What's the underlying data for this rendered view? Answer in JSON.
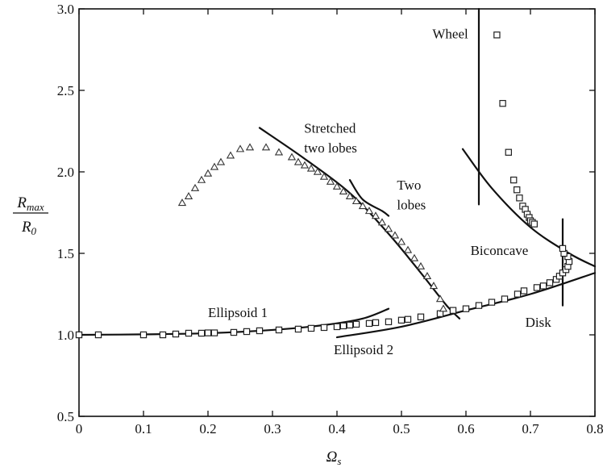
{
  "chart_data": {
    "type": "scatter",
    "title": "",
    "xlabel": {
      "main": "Ω",
      "sub": "s"
    },
    "ylabel": {
      "numerator_main": "R",
      "numerator_sub": "max",
      "denominator_main": "R",
      "denominator_sub": "0"
    },
    "xlim": [
      0,
      0.8
    ],
    "ylim": [
      0.5,
      3.0
    ],
    "xticks": [
      0,
      0.1,
      0.2,
      0.3,
      0.4,
      0.5,
      0.6,
      0.7,
      0.8
    ],
    "xtick_labels": [
      "0",
      "0.1",
      "0.2",
      "0.3",
      "0.4",
      "0.5",
      "0.6",
      "0.7",
      "0.8"
    ],
    "yticks": [
      0.5,
      1.0,
      1.5,
      2.0,
      2.5,
      3.0
    ],
    "ytick_labels": [
      "0.5",
      "1.0",
      "1.5",
      "2.0",
      "2.5",
      "3.0"
    ],
    "grid": false,
    "series": [
      {
        "marker": "square",
        "points": [
          [
            0.0,
            1.0
          ],
          [
            0.03,
            1.0
          ],
          [
            0.1,
            1.0
          ],
          [
            0.13,
            1.0
          ],
          [
            0.15,
            1.005
          ],
          [
            0.17,
            1.01
          ],
          [
            0.19,
            1.01
          ],
          [
            0.2,
            1.012
          ],
          [
            0.21,
            1.012
          ],
          [
            0.24,
            1.015
          ],
          [
            0.26,
            1.02
          ],
          [
            0.28,
            1.025
          ],
          [
            0.31,
            1.03
          ],
          [
            0.34,
            1.035
          ],
          [
            0.36,
            1.04
          ],
          [
            0.38,
            1.045
          ],
          [
            0.4,
            1.05
          ],
          [
            0.41,
            1.055
          ],
          [
            0.42,
            1.06
          ],
          [
            0.43,
            1.065
          ],
          [
            0.45,
            1.07
          ],
          [
            0.46,
            1.075
          ],
          [
            0.48,
            1.08
          ],
          [
            0.5,
            1.09
          ],
          [
            0.51,
            1.095
          ],
          [
            0.53,
            1.11
          ],
          [
            0.56,
            1.13
          ],
          [
            0.58,
            1.15
          ],
          [
            0.6,
            1.16
          ],
          [
            0.62,
            1.18
          ],
          [
            0.64,
            1.2
          ],
          [
            0.66,
            1.22
          ],
          [
            0.68,
            1.25
          ],
          [
            0.69,
            1.27
          ],
          [
            0.71,
            1.29
          ],
          [
            0.72,
            1.3
          ],
          [
            0.73,
            1.32
          ],
          [
            0.74,
            1.34
          ],
          [
            0.745,
            1.36
          ],
          [
            0.75,
            1.38
          ],
          [
            0.755,
            1.4
          ],
          [
            0.758,
            1.42
          ],
          [
            0.76,
            1.45
          ],
          [
            0.758,
            1.48
          ],
          [
            0.752,
            1.5
          ],
          [
            0.75,
            1.53
          ],
          [
            0.648,
            2.84
          ],
          [
            0.657,
            2.42
          ],
          [
            0.666,
            2.12
          ],
          [
            0.674,
            1.95
          ],
          [
            0.679,
            1.89
          ],
          [
            0.683,
            1.84
          ],
          [
            0.688,
            1.79
          ],
          [
            0.692,
            1.77
          ],
          [
            0.695,
            1.74
          ],
          [
            0.698,
            1.72
          ],
          [
            0.7,
            1.7
          ],
          [
            0.703,
            1.69
          ],
          [
            0.706,
            1.68
          ]
        ]
      },
      {
        "marker": "triangle",
        "points": [
          [
            0.16,
            1.81
          ],
          [
            0.17,
            1.85
          ],
          [
            0.18,
            1.9
          ],
          [
            0.19,
            1.95
          ],
          [
            0.2,
            1.99
          ],
          [
            0.21,
            2.03
          ],
          [
            0.22,
            2.06
          ],
          [
            0.235,
            2.1
          ],
          [
            0.25,
            2.14
          ],
          [
            0.265,
            2.15
          ],
          [
            0.29,
            2.15
          ],
          [
            0.31,
            2.12
          ],
          [
            0.33,
            2.09
          ],
          [
            0.34,
            2.06
          ],
          [
            0.35,
            2.04
          ],
          [
            0.36,
            2.02
          ],
          [
            0.37,
            2.0
          ],
          [
            0.38,
            1.97
          ],
          [
            0.39,
            1.94
          ],
          [
            0.4,
            1.91
          ],
          [
            0.41,
            1.88
          ],
          [
            0.42,
            1.85
          ],
          [
            0.43,
            1.82
          ],
          [
            0.44,
            1.79
          ],
          [
            0.45,
            1.76
          ],
          [
            0.46,
            1.73
          ],
          [
            0.47,
            1.69
          ],
          [
            0.48,
            1.65
          ],
          [
            0.49,
            1.61
          ],
          [
            0.5,
            1.57
          ],
          [
            0.51,
            1.52
          ],
          [
            0.52,
            1.47
          ],
          [
            0.53,
            1.42
          ],
          [
            0.54,
            1.36
          ],
          [
            0.55,
            1.3
          ],
          [
            0.56,
            1.22
          ],
          [
            0.565,
            1.16
          ]
        ]
      }
    ],
    "fit_lines": [
      {
        "points": [
          [
            0.0,
            1.0
          ],
          [
            0.1,
            1.003
          ],
          [
            0.2,
            1.01
          ],
          [
            0.3,
            1.03
          ],
          [
            0.38,
            1.06
          ],
          [
            0.44,
            1.1
          ],
          [
            0.48,
            1.16
          ]
        ]
      },
      {
        "points": [
          [
            0.4,
            0.985
          ],
          [
            0.5,
            1.05
          ],
          [
            0.6,
            1.15
          ],
          [
            0.7,
            1.25
          ],
          [
            0.8,
            1.38
          ]
        ]
      },
      {
        "points": [
          [
            0.28,
            2.27
          ],
          [
            0.35,
            2.08
          ],
          [
            0.42,
            1.87
          ],
          [
            0.48,
            1.62
          ],
          [
            0.53,
            1.38
          ],
          [
            0.57,
            1.18
          ],
          [
            0.59,
            1.1
          ]
        ]
      },
      {
        "points": [
          [
            0.42,
            1.95
          ],
          [
            0.44,
            1.83
          ],
          [
            0.47,
            1.76
          ],
          [
            0.48,
            1.73
          ]
        ]
      },
      {
        "points": [
          [
            0.595,
            2.14
          ],
          [
            0.64,
            1.9
          ],
          [
            0.7,
            1.66
          ],
          [
            0.76,
            1.5
          ],
          [
            0.8,
            1.42
          ]
        ]
      },
      {
        "points": [
          [
            0.62,
            3.0
          ],
          [
            0.62,
            1.8
          ]
        ]
      },
      {
        "points": [
          [
            0.75,
            1.71
          ],
          [
            0.75,
            1.18
          ]
        ]
      }
    ],
    "region_labels": [
      {
        "text": "Wheel",
        "x": 0.548,
        "y": 2.82
      },
      {
        "text": "Stretched",
        "x": 0.349,
        "y": 2.24
      },
      {
        "text": "two lobes",
        "x": 0.349,
        "y": 2.12
      },
      {
        "text": "Two",
        "x": 0.493,
        "y": 1.89
      },
      {
        "text": "lobes",
        "x": 0.493,
        "y": 1.77
      },
      {
        "text": "Biconcave",
        "x": 0.607,
        "y": 1.49
      },
      {
        "text": "Ellipsoid 1",
        "x": 0.2,
        "y": 1.11
      },
      {
        "text": "Ellipsoid 2",
        "x": 0.395,
        "y": 0.88
      },
      {
        "text": "Disk",
        "x": 0.692,
        "y": 1.05
      }
    ]
  }
}
